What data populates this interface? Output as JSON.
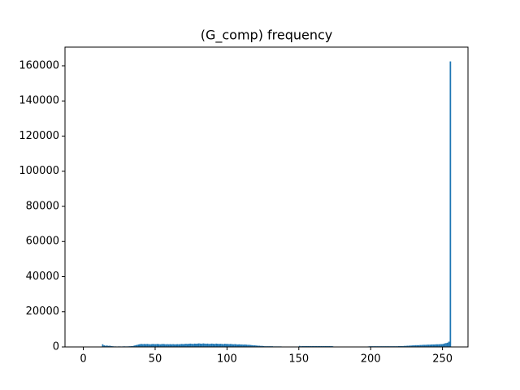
{
  "chart_data": {
    "type": "histogram",
    "title": "(G_comp) frequency",
    "color": "#1f77b4",
    "bins": [
      0,
      1,
      2,
      3,
      4,
      5,
      6,
      7,
      8,
      9,
      10,
      11,
      12,
      13,
      14,
      15,
      16,
      17,
      18,
      19,
      20,
      21,
      22,
      23,
      24,
      25,
      26,
      27,
      28,
      29,
      30,
      31,
      32,
      33,
      34,
      35,
      36,
      37,
      38,
      39,
      40,
      41,
      42,
      43,
      44,
      45,
      46,
      47,
      48,
      49,
      50,
      51,
      52,
      53,
      54,
      55,
      56,
      57,
      58,
      59,
      60,
      61,
      62,
      63,
      64,
      65,
      66,
      67,
      68,
      69,
      70,
      71,
      72,
      73,
      74,
      75,
      76,
      77,
      78,
      79,
      80,
      81,
      82,
      83,
      84,
      85,
      86,
      87,
      88,
      89,
      90,
      91,
      92,
      93,
      94,
      95,
      96,
      97,
      98,
      99,
      100,
      101,
      102,
      103,
      104,
      105,
      106,
      107,
      108,
      109,
      110,
      111,
      112,
      113,
      114,
      115,
      116,
      117,
      118,
      119,
      120,
      121,
      122,
      123,
      124,
      125,
      126,
      127,
      128,
      129,
      130,
      131,
      132,
      133,
      134,
      135,
      136,
      137,
      138,
      139,
      140,
      141,
      142,
      143,
      144,
      145,
      146,
      147,
      148,
      149,
      150,
      151,
      152,
      153,
      154,
      155,
      156,
      157,
      158,
      159,
      160,
      161,
      162,
      163,
      164,
      165,
      166,
      167,
      168,
      169,
      170,
      171,
      172,
      173,
      174,
      175,
      176,
      177,
      178,
      179,
      180,
      181,
      182,
      183,
      184,
      185,
      186,
      187,
      188,
      189,
      190,
      191,
      192,
      193,
      194,
      195,
      196,
      197,
      198,
      199,
      200,
      201,
      202,
      203,
      204,
      205,
      206,
      207,
      208,
      209,
      210,
      211,
      212,
      213,
      214,
      215,
      216,
      217,
      218,
      219,
      220,
      221,
      222,
      223,
      224,
      225,
      226,
      227,
      228,
      229,
      230,
      231,
      232,
      233,
      234,
      235,
      236,
      237,
      238,
      239,
      240,
      241,
      242,
      243,
      244,
      245,
      246,
      247,
      248,
      249,
      250,
      251,
      252,
      253,
      254,
      255,
      256
    ],
    "values": [
      0,
      0,
      0,
      0,
      0,
      0,
      0,
      0,
      0,
      0,
      0,
      0,
      0,
      1500,
      900,
      700,
      800,
      600,
      700,
      500,
      400,
      300,
      300,
      250,
      300,
      300,
      250,
      300,
      350,
      300,
      300,
      350,
      400,
      450,
      500,
      800,
      1000,
      1200,
      1400,
      1600,
      1700,
      1600,
      1700,
      1600,
      1700,
      1600,
      1500,
      1600,
      1700,
      1600,
      1600,
      1700,
      1600,
      1500,
      1600,
      1700,
      1600,
      1500,
      1600,
      1500,
      1600,
      1500,
      1600,
      1500,
      1500,
      1600,
      1500,
      1600,
      1700,
      1600,
      1700,
      1800,
      1700,
      1800,
      1900,
      1800,
      1700,
      1900,
      1800,
      1900,
      2000,
      1900,
      1800,
      2000,
      1900,
      1800,
      1900,
      1700,
      1800,
      1900,
      1800,
      1700,
      1900,
      1800,
      1700,
      1800,
      1700,
      1600,
      1800,
      1700,
      1700,
      1600,
      1700,
      1600,
      1500,
      1600,
      1500,
      1400,
      1500,
      1400,
      1400,
      1300,
      1400,
      1300,
      1200,
      1200,
      1100,
      1000,
      900,
      900,
      800,
      700,
      700,
      600,
      600,
      500,
      400,
      400,
      400,
      400,
      400,
      400,
      300,
      300,
      300,
      300,
      300,
      300,
      200,
      200,
      100,
      50,
      0,
      0,
      0,
      0,
      0,
      0,
      0,
      0,
      600,
      400,
      500,
      500,
      500,
      500,
      500,
      500,
      500,
      500,
      500,
      500,
      500,
      500,
      500,
      500,
      500,
      500,
      500,
      500,
      500,
      500,
      500,
      400,
      0,
      0,
      0,
      0,
      0,
      0,
      0,
      0,
      0,
      0,
      0,
      0,
      0,
      0,
      0,
      0,
      0,
      0,
      0,
      0,
      0,
      0,
      0,
      0,
      300,
      400,
      400,
      400,
      400,
      400,
      400,
      400,
      400,
      400,
      400,
      400,
      400,
      400,
      400,
      400,
      400,
      400,
      400,
      400,
      400,
      500,
      500,
      500,
      500,
      600,
      600,
      700,
      700,
      800,
      800,
      900,
      900,
      1000,
      1000,
      1000,
      1100,
      1100,
      1200,
      1200,
      1200,
      1300,
      1300,
      1300,
      1400,
      1400,
      1400,
      1500,
      1500,
      1500,
      1600,
      1600,
      1700,
      2000,
      2200,
      2400,
      3000,
      162500
    ],
    "xlim": [
      -12.75,
      267.75
    ],
    "xticks": [
      0,
      50,
      100,
      150,
      200,
      250
    ],
    "ylim": [
      0,
      170625
    ],
    "yticks": [
      0,
      20000,
      40000,
      60000,
      80000,
      100000,
      120000,
      140000,
      160000
    ],
    "grid": false
  }
}
